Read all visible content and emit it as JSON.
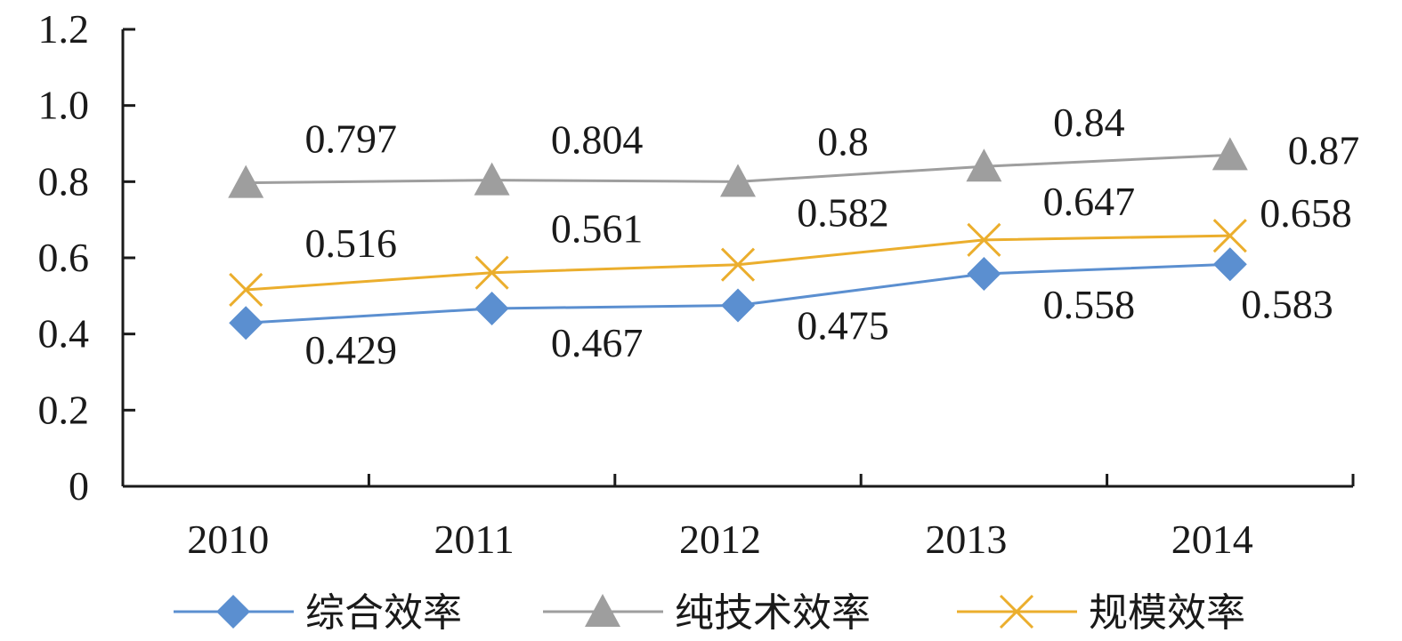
{
  "chart_data": {
    "type": "line",
    "title": "",
    "xlabel": "",
    "ylabel": "",
    "categories": [
      "2010",
      "2011",
      "2012",
      "2013",
      "2014"
    ],
    "ylim": [
      0,
      1.2
    ],
    "yticks": [
      "0",
      "0.2",
      "0.4",
      "0.6",
      "0.8",
      "1.0",
      "1.2"
    ],
    "grid": false,
    "legend_position": "bottom",
    "series": [
      {
        "name": "综合效率",
        "marker": "diamond",
        "color": "#5B8FD0",
        "values": [
          0.429,
          0.467,
          0.475,
          0.558,
          0.583
        ],
        "labels": [
          "0.429",
          "0.467",
          "0.475",
          "0.558",
          "0.583"
        ],
        "label_position": "below"
      },
      {
        "name": "纯技术效率",
        "marker": "triangle",
        "color": "#9E9E9E",
        "values": [
          0.797,
          0.804,
          0.8,
          0.84,
          0.87
        ],
        "labels": [
          "0.797",
          "0.804",
          "0.8",
          "0.84",
          "0.87"
        ],
        "label_position": "above"
      },
      {
        "name": "规模效率",
        "marker": "x",
        "color": "#EBAE2D",
        "values": [
          0.516,
          0.561,
          0.582,
          0.647,
          0.658
        ],
        "labels": [
          "0.516",
          "0.561",
          "0.582",
          "0.647",
          "0.658"
        ],
        "label_position": "above"
      }
    ]
  }
}
